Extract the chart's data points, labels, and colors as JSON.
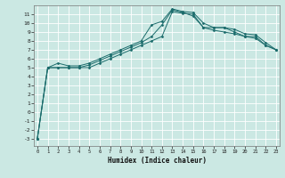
{
  "xlabel": "Humidex (Indice chaleur)",
  "bg_color": "#cbe8e3",
  "line_color": "#1a6b6b",
  "grid_color": "#ffffff",
  "x_ticks": [
    0,
    1,
    2,
    3,
    4,
    5,
    6,
    7,
    8,
    9,
    10,
    11,
    12,
    13,
    14,
    15,
    16,
    17,
    18,
    19,
    20,
    21,
    22,
    23
  ],
  "y_ticks": [
    -3,
    -2,
    -1,
    0,
    1,
    2,
    3,
    4,
    5,
    6,
    7,
    8,
    9,
    10,
    11
  ],
  "xlim": [
    -0.3,
    23.3
  ],
  "ylim": [
    -3.8,
    12.0
  ],
  "series": {
    "line1": [
      [
        0,
        -3
      ],
      [
        1,
        5.0
      ],
      [
        2,
        5.0
      ],
      [
        3,
        5.0
      ],
      [
        4,
        5.0
      ],
      [
        5,
        5.0
      ],
      [
        6,
        5.5
      ],
      [
        7,
        6.0
      ],
      [
        8,
        6.5
      ],
      [
        9,
        7.0
      ],
      [
        10,
        7.5
      ],
      [
        11,
        8.0
      ],
      [
        12,
        8.5
      ],
      [
        13,
        11.3
      ],
      [
        14,
        11.1
      ],
      [
        15,
        11.0
      ],
      [
        16,
        9.5
      ],
      [
        17,
        9.5
      ],
      [
        18,
        9.5
      ],
      [
        19,
        9.0
      ],
      [
        20,
        8.5
      ],
      [
        21,
        8.5
      ],
      [
        22,
        7.5
      ],
      [
        23,
        7.0
      ]
    ],
    "line2": [
      [
        0,
        -3
      ],
      [
        1,
        5.0
      ],
      [
        2,
        5.0
      ],
      [
        3,
        5.0
      ],
      [
        4,
        5.0
      ],
      [
        5,
        5.3
      ],
      [
        6,
        5.8
      ],
      [
        7,
        6.3
      ],
      [
        8,
        6.8
      ],
      [
        9,
        7.3
      ],
      [
        10,
        7.8
      ],
      [
        11,
        8.5
      ],
      [
        12,
        9.8
      ],
      [
        13,
        11.5
      ],
      [
        14,
        11.2
      ],
      [
        15,
        10.8
      ],
      [
        16,
        9.5
      ],
      [
        17,
        9.2
      ],
      [
        18,
        9.0
      ],
      [
        19,
        8.8
      ],
      [
        20,
        8.5
      ],
      [
        21,
        8.3
      ],
      [
        22,
        7.5
      ],
      [
        23,
        7.0
      ]
    ],
    "line3": [
      [
        0,
        -3
      ],
      [
        1,
        5.0
      ],
      [
        2,
        5.5
      ],
      [
        3,
        5.2
      ],
      [
        4,
        5.2
      ],
      [
        5,
        5.5
      ],
      [
        6,
        6.0
      ],
      [
        7,
        6.5
      ],
      [
        8,
        7.0
      ],
      [
        9,
        7.5
      ],
      [
        10,
        8.0
      ],
      [
        11,
        9.8
      ],
      [
        12,
        10.2
      ],
      [
        13,
        11.6
      ],
      [
        14,
        11.3
      ],
      [
        15,
        11.2
      ],
      [
        16,
        10.0
      ],
      [
        17,
        9.5
      ],
      [
        18,
        9.5
      ],
      [
        19,
        9.3
      ],
      [
        20,
        8.8
      ],
      [
        21,
        8.7
      ],
      [
        22,
        7.8
      ],
      [
        23,
        7.0
      ]
    ]
  }
}
